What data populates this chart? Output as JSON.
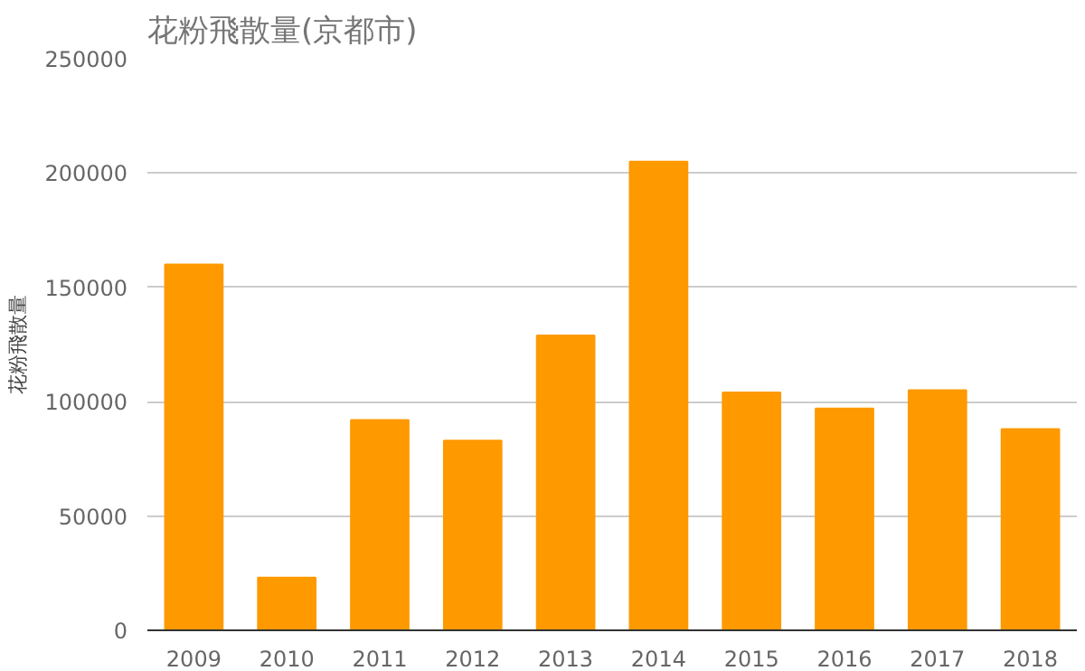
{
  "chart_data": {
    "type": "bar",
    "title": "花粉飛散量(京都市)",
    "ylabel": "花粉飛散量",
    "categories": [
      "2009",
      "2010",
      "2011",
      "2012",
      "2013",
      "2014",
      "2015",
      "2016",
      "2017",
      "2018"
    ],
    "values": [
      160000,
      23000,
      92000,
      83000,
      129000,
      205000,
      104000,
      97000,
      105000,
      88000
    ],
    "color": "#ff9900",
    "ylim": [
      0,
      250000
    ],
    "yticks": [
      0,
      50000,
      100000,
      150000,
      200000,
      250000
    ],
    "grid": "y"
  }
}
